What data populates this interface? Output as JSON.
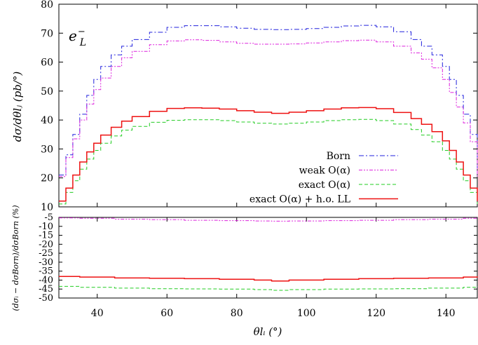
{
  "chart_data": [
    {
      "type": "line",
      "panel": "main",
      "annotation": "e⁻_L",
      "ylabel": "dσ/dθlⱼ (pb/°)",
      "xlabel": "",
      "xlim": [
        29,
        149
      ],
      "ylim": [
        10,
        80
      ],
      "yticks": [
        "10",
        "20",
        "30",
        "40",
        "50",
        "60",
        "70",
        "80"
      ],
      "grid": false,
      "legend_position": "bottom-right",
      "x": [
        29,
        31,
        33,
        35,
        37,
        39,
        41,
        44,
        47,
        50,
        55,
        60,
        65,
        70,
        75,
        80,
        85,
        90,
        95,
        100,
        105,
        110,
        115,
        120,
        125,
        130,
        133,
        136,
        139,
        141,
        143,
        145,
        147,
        149
      ],
      "series": [
        {
          "name": "Born",
          "color": "#2222dd",
          "dash": "dashdot",
          "values": [
            21,
            28,
            35,
            42,
            48.5,
            54,
            58.5,
            62.5,
            65.5,
            67.8,
            70.3,
            72,
            72.6,
            72.6,
            72.2,
            71.7,
            71.3,
            71.2,
            71.3,
            71.6,
            72,
            72.5,
            72.7,
            72.2,
            70.5,
            67.8,
            65.5,
            62.5,
            58.5,
            54,
            48.5,
            42,
            35,
            21
          ]
        },
        {
          "name": "weak O(α)",
          "color": "#dd22dd",
          "dash": "dashdotdot",
          "values": [
            20.5,
            27,
            33.5,
            40,
            45.5,
            50.5,
            54.5,
            58.5,
            61.5,
            63.7,
            66,
            67.3,
            67.7,
            67.5,
            67,
            66.5,
            66.2,
            66.2,
            66.3,
            66.6,
            67,
            67.4,
            67.6,
            67,
            65.5,
            63.2,
            61,
            58,
            54,
            49.5,
            44.5,
            39,
            32.5,
            20.5
          ]
        },
        {
          "name": "exact O(α)",
          "color": "#22cc22",
          "dash": "dashed",
          "values": [
            11,
            15,
            19,
            23,
            26.5,
            29.5,
            32,
            34.5,
            36.5,
            37.8,
            39.2,
            39.9,
            40.1,
            40.1,
            39.8,
            39.3,
            38.9,
            38.6,
            38.9,
            39.3,
            39.8,
            40.1,
            40.2,
            39.8,
            38.6,
            36.7,
            34.8,
            32.5,
            29.5,
            26.5,
            23,
            19,
            15,
            11
          ]
        },
        {
          "name": "exact O(α) + h.o. LL",
          "color": "#ee1111",
          "dash": "solid",
          "values": [
            12,
            16.5,
            21,
            25.5,
            29,
            32,
            34.8,
            37.5,
            39.6,
            41.2,
            43,
            44,
            44.2,
            44.1,
            43.8,
            43.2,
            42.7,
            42.3,
            42.7,
            43.2,
            43.8,
            44.2,
            44.3,
            43.9,
            42.6,
            40.5,
            38.5,
            36,
            32.8,
            29.5,
            25.5,
            21,
            16.5,
            12
          ]
        }
      ]
    },
    {
      "type": "line",
      "panel": "ratio",
      "ylabel": "(dσᵢ − dσBorn)/dσBorn (%)",
      "xlabel": "θlᵢ (°)",
      "xlim": [
        29,
        149
      ],
      "ylim": [
        -50,
        -5
      ],
      "xticks": [
        "40",
        "60",
        "80",
        "100",
        "120",
        "140"
      ],
      "yticks": [
        "-5",
        "-10",
        "-15",
        "-20",
        "-25",
        "-30",
        "-35",
        "-40",
        "-45",
        "-50"
      ],
      "grid": false,
      "x": [
        29,
        35,
        45,
        55,
        65,
        75,
        85,
        90,
        95,
        105,
        115,
        125,
        135,
        145,
        149
      ],
      "series": [
        {
          "name": "weak O(α)",
          "color": "#dd22dd",
          "dash": "dashdotdot",
          "values": [
            -5.3,
            -5.5,
            -6,
            -6.3,
            -6.6,
            -6.8,
            -7,
            -7.1,
            -7,
            -6.8,
            -6.6,
            -6.3,
            -6,
            -5.5,
            -5.3
          ]
        },
        {
          "name": "exact O(α)",
          "color": "#22cc22",
          "dash": "dashed",
          "values": [
            -43.5,
            -44,
            -44.5,
            -44.8,
            -44.9,
            -45,
            -45.3,
            -45.7,
            -45.3,
            -45,
            -44.9,
            -44.8,
            -44.5,
            -44,
            -43.5
          ]
        },
        {
          "name": "exact O(α) + h.o. LL",
          "color": "#ee1111",
          "dash": "solid",
          "values": [
            -38,
            -38.3,
            -38.8,
            -39,
            -39.2,
            -39.5,
            -40,
            -40.5,
            -40,
            -39.5,
            -39.2,
            -39,
            -38.8,
            -38.3,
            -38
          ]
        }
      ]
    }
  ]
}
